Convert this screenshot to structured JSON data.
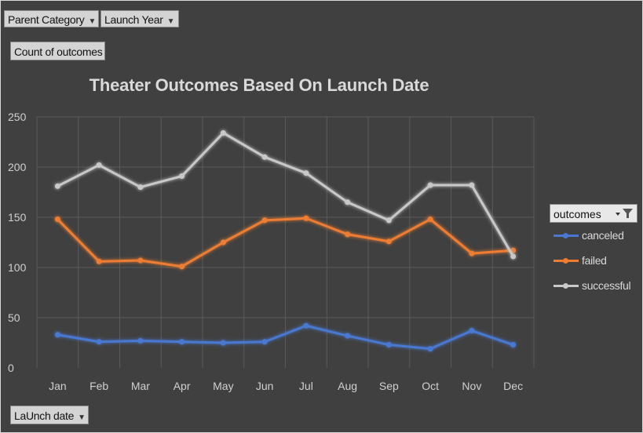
{
  "filters": {
    "parent_category": "Parent Category",
    "launch_year": "Launch Year",
    "count_label": "Count of outcomes",
    "axis_field": "LaUnch date"
  },
  "legend": {
    "header": "outcomes"
  },
  "colors": {
    "canceled": "#4a78d0",
    "failed": "#ed7d31",
    "successful": "#c8c8c8",
    "background": "#404040",
    "grid": "#5a5a5a"
  },
  "chart_data": {
    "type": "line",
    "title": "Theater Outcomes Based On Launch Date",
    "xlabel": "",
    "ylabel": "",
    "categories": [
      "Jan",
      "Feb",
      "Mar",
      "Apr",
      "May",
      "Jun",
      "Jul",
      "Aug",
      "Sep",
      "Oct",
      "Nov",
      "Dec"
    ],
    "ylim": [
      0,
      250
    ],
    "yticks": [
      "0",
      "50",
      "100",
      "150",
      "200",
      "250"
    ],
    "grid": true,
    "legend_position": "right",
    "series": [
      {
        "name": "canceled",
        "values": [
          33,
          26,
          27,
          26,
          25,
          26,
          42,
          32,
          23,
          19,
          37,
          23
        ]
      },
      {
        "name": "failed",
        "values": [
          148,
          106,
          107,
          101,
          125,
          147,
          149,
          133,
          126,
          148,
          114,
          117
        ]
      },
      {
        "name": "successful",
        "values": [
          181,
          202,
          180,
          191,
          234,
          210,
          194,
          165,
          147,
          182,
          182,
          111
        ]
      }
    ]
  }
}
